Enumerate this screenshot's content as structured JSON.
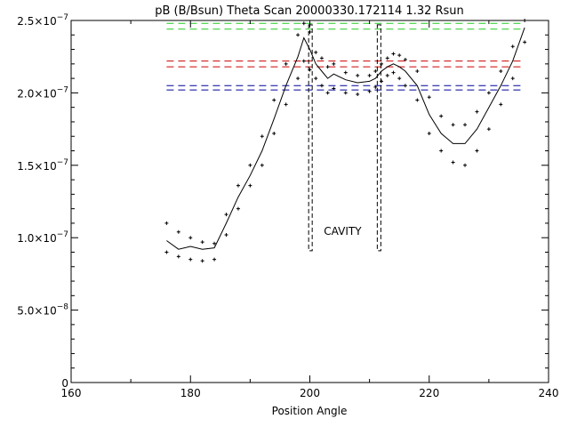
{
  "chart_data": {
    "type": "scatter",
    "title": "pB (B/Bsun) Theta Scan 20000330.172114  1.32 Rsun",
    "xlabel": "Position Angle",
    "ylabel": "",
    "xlim": [
      160,
      240
    ],
    "ylim": [
      0,
      2.5e-07
    ],
    "x_ticks": [
      160,
      180,
      200,
      220,
      240
    ],
    "x_tick_labels": [
      "160",
      "180",
      "200",
      "220",
      "240"
    ],
    "y_ticks": [
      0,
      5e-08,
      1e-07,
      1.5e-07,
      2e-07,
      2.5e-07
    ],
    "y_tick_labels": [
      {
        "mant": "0",
        "exp": ""
      },
      {
        "mant": "5.0×10",
        "exp": "−8"
      },
      {
        "mant": "1.0×10",
        "exp": "−7"
      },
      {
        "mant": "1.5×10",
        "exp": "−7"
      },
      {
        "mant": "2.0×10",
        "exp": "−7"
      },
      {
        "mant": "2.5×10",
        "exp": "−7"
      }
    ],
    "grid": false,
    "annotation": {
      "text": "CAVITY",
      "x": 205.5,
      "y": 1.02e-07,
      "color": "#cc0000"
    },
    "cavity_bounds": {
      "x": [
        200.1,
        211.6
      ],
      "y_bottom": 9.1e-08,
      "y_top": 2.47e-07
    },
    "reference_lines": [
      {
        "y": 2.48e-07,
        "color": "#22cc22"
      },
      {
        "y": 2.44e-07,
        "color": "#22cc22"
      },
      {
        "y": 2.22e-07,
        "color": "#cc0000"
      },
      {
        "y": 2.18e-07,
        "color": "#cc0000"
      },
      {
        "y": 2.05e-07,
        "color": "#000099"
      },
      {
        "y": 2.02e-07,
        "color": "#000099"
      }
    ],
    "reference_x_range": [
      176,
      236
    ],
    "series": [
      {
        "style": "line",
        "x": [
          176,
          178,
          180,
          182,
          184,
          186,
          188,
          190,
          192,
          194,
          196,
          198,
          199,
          200,
          201,
          202,
          203,
          204,
          206,
          208,
          210,
          211,
          212,
          213,
          214,
          215,
          216,
          218,
          220,
          222,
          224,
          226,
          228,
          230,
          232,
          234,
          236
        ],
        "y": [
          9.8e-08,
          9.2e-08,
          9.4e-08,
          9.2e-08,
          9.3e-08,
          1.1e-07,
          1.28e-07,
          1.43e-07,
          1.6e-07,
          1.82e-07,
          2.05e-07,
          2.25e-07,
          2.38e-07,
          2.3e-07,
          2.2e-07,
          2.15e-07,
          2.1e-07,
          2.13e-07,
          2.09e-07,
          2.07e-07,
          2.08e-07,
          2.1e-07,
          2.15e-07,
          2.18e-07,
          2.2e-07,
          2.18e-07,
          2.15e-07,
          2.05e-07,
          1.85e-07,
          1.72e-07,
          1.65e-07,
          1.65e-07,
          1.75e-07,
          1.9e-07,
          2.05e-07,
          2.22e-07,
          2.45e-07
        ]
      },
      {
        "style": "points",
        "x": [
          176,
          178,
          180,
          182,
          184,
          186,
          188,
          190,
          192,
          194,
          196,
          198,
          199,
          200,
          201,
          202,
          203,
          204,
          206,
          208,
          210,
          211,
          212,
          213,
          214,
          215,
          216,
          218,
          220,
          222,
          224,
          226,
          228,
          230,
          232,
          234,
          236
        ],
        "y": [
          1.1e-07,
          1.04e-07,
          1e-07,
          9.7e-08,
          9.6e-08,
          1.16e-07,
          1.36e-07,
          1.5e-07,
          1.7e-07,
          1.95e-07,
          2.2e-07,
          2.4e-07,
          2.48e-07,
          2.42e-07,
          2.28e-07,
          2.24e-07,
          2.18e-07,
          2.2e-07,
          2.14e-07,
          2.12e-07,
          2.12e-07,
          2.15e-07,
          2.2e-07,
          2.24e-07,
          2.27e-07,
          2.26e-07,
          2.23e-07,
          2.15e-07,
          1.97e-07,
          1.84e-07,
          1.78e-07,
          1.78e-07,
          1.87e-07,
          2e-07,
          2.15e-07,
          2.32e-07,
          2.5e-07
        ]
      },
      {
        "style": "points",
        "x": [
          176,
          178,
          180,
          182,
          184,
          186,
          188,
          190,
          192,
          194,
          196,
          198,
          199,
          200,
          201,
          202,
          203,
          204,
          206,
          208,
          210,
          211,
          212,
          213,
          214,
          215,
          216,
          218,
          220,
          222,
          224,
          226,
          228,
          230,
          232,
          234,
          236
        ],
        "y": [
          9e-08,
          8.7e-08,
          8.5e-08,
          8.4e-08,
          8.5e-08,
          1.02e-07,
          1.2e-07,
          1.36e-07,
          1.5e-07,
          1.72e-07,
          1.92e-07,
          2.1e-07,
          2.22e-07,
          2.16e-07,
          2.1e-07,
          2.05e-07,
          2e-07,
          2.03e-07,
          2e-07,
          1.99e-07,
          2.01e-07,
          2.04e-07,
          2.08e-07,
          2.12e-07,
          2.14e-07,
          2.1e-07,
          2.05e-07,
          1.95e-07,
          1.72e-07,
          1.6e-07,
          1.52e-07,
          1.5e-07,
          1.6e-07,
          1.75e-07,
          1.92e-07,
          2.1e-07,
          2.35e-07
        ]
      }
    ]
  }
}
